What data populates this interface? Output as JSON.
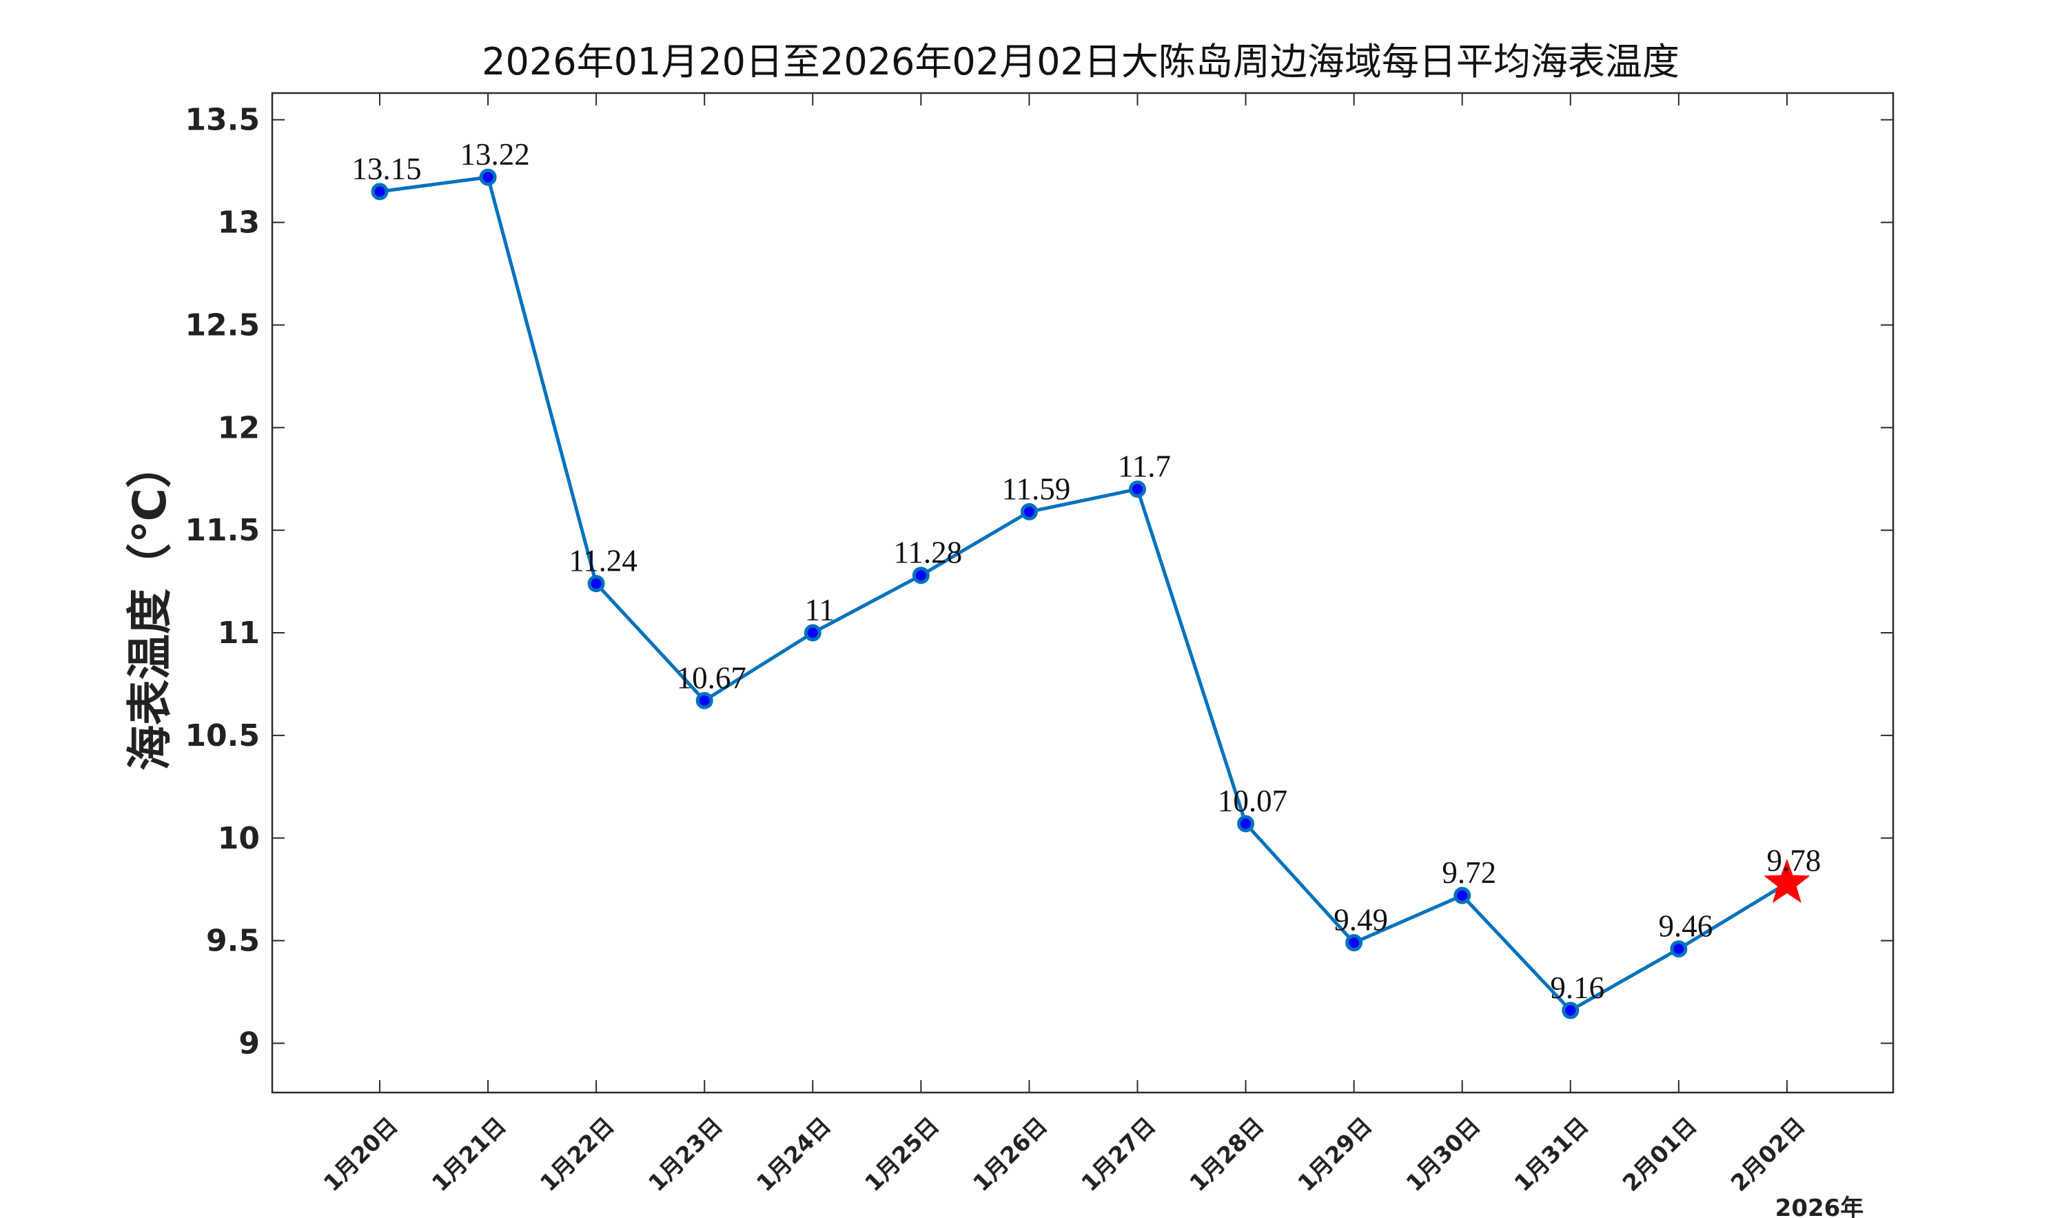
{
  "chart_data": {
    "type": "line",
    "title": "2026年01月20日至2026年02月02日大陈岛周边海域每日平均海表温度",
    "ylabel": "海表温度（℃）",
    "xlabel": "",
    "x_axis_extra_label": "2026年",
    "categories": [
      "1月20日",
      "1月21日",
      "1月22日",
      "1月23日",
      "1月24日",
      "1月25日",
      "1月26日",
      "1月27日",
      "1月28日",
      "1月29日",
      "1月30日",
      "1月31日",
      "2月01日",
      "2月02日"
    ],
    "values": [
      13.15,
      13.22,
      11.24,
      10.67,
      11,
      11.28,
      11.59,
      11.7,
      10.07,
      9.49,
      9.72,
      9.16,
      9.46,
      9.78
    ],
    "data_labels": [
      "13.15",
      "13.22",
      "11.24",
      "10.67",
      "11",
      "11.28",
      "11.59",
      "11.7",
      "10.07",
      "9.49",
      "9.72",
      "9.16",
      "9.46",
      "9.78"
    ],
    "ylim": [
      8.76,
      13.63
    ],
    "yticks": [
      9,
      9.5,
      10,
      10.5,
      11,
      11.5,
      12,
      12.5,
      13,
      13.5
    ],
    "ytick_labels": [
      "9",
      "9.5",
      "10",
      "10.5",
      "11",
      "11.5",
      "12",
      "12.5",
      "13",
      "13.5"
    ],
    "grid": true,
    "highlight_last_point": "red-star",
    "colors": {
      "line": "#0072BD",
      "marker_fill": "#0000FF",
      "marker_edge": "#0072BD",
      "star": "#FF0000",
      "grid": "#e6e6e6",
      "axes": "#2b2b2b"
    }
  }
}
